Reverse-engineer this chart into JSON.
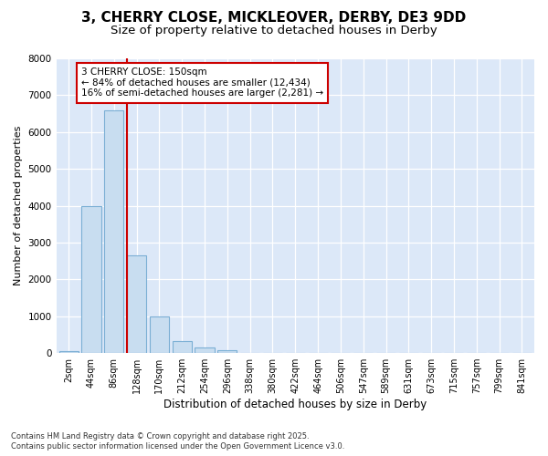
{
  "title_line1": "3, CHERRY CLOSE, MICKLEOVER, DERBY, DE3 9DD",
  "title_line2": "Size of property relative to detached houses in Derby",
  "xlabel": "Distribution of detached houses by size in Derby",
  "ylabel": "Number of detached properties",
  "categories": [
    "2sqm",
    "44sqm",
    "86sqm",
    "128sqm",
    "170sqm",
    "212sqm",
    "254sqm",
    "296sqm",
    "338sqm",
    "380sqm",
    "422sqm",
    "464sqm",
    "506sqm",
    "547sqm",
    "589sqm",
    "631sqm",
    "673sqm",
    "715sqm",
    "757sqm",
    "799sqm",
    "841sqm"
  ],
  "values": [
    60,
    4000,
    6600,
    2650,
    1000,
    330,
    150,
    80,
    0,
    0,
    0,
    0,
    0,
    0,
    0,
    0,
    0,
    0,
    0,
    0,
    0
  ],
  "bar_color": "#c8ddf0",
  "bar_edge_color": "#7bafd4",
  "vline_color": "#cc0000",
  "annotation_text": "3 CHERRY CLOSE: 150sqm\n← 84% of detached houses are smaller (12,434)\n16% of semi-detached houses are larger (2,281) →",
  "ylim": [
    0,
    8000
  ],
  "yticks": [
    0,
    1000,
    2000,
    3000,
    4000,
    5000,
    6000,
    7000,
    8000
  ],
  "footer_line1": "Contains HM Land Registry data © Crown copyright and database right 2025.",
  "footer_line2": "Contains public sector information licensed under the Open Government Licence v3.0.",
  "fig_bg_color": "#ffffff",
  "plot_bg_color": "#dce8f8",
  "grid_color": "#ffffff",
  "vline_x_index": 3,
  "bar_width": 0.85
}
